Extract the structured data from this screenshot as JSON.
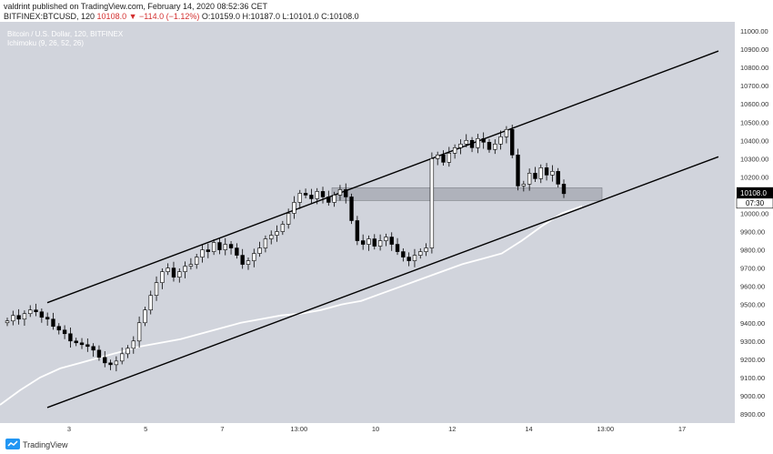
{
  "header": {
    "published": "valdrint published on TradingView.com, February 14, 2020 08:52:36 CET",
    "symbol": "BITFINEX:BTCUSD, 120",
    "last": "10108.0",
    "change": "▼ −114.0 (−1.12%)",
    "open": "O:10159.0",
    "high": "H:10187.0",
    "low": "L:10101.0",
    "close": "C:10108.0"
  },
  "legend": {
    "title": "Bitcoin / U.S. Dollar, 120, BITFINEX",
    "indicator": "Ichimoku (9, 26, 52, 26)"
  },
  "footer": {
    "brand": "TradingView"
  },
  "colors": {
    "background": "#d1d4dc",
    "candle_up": "#ffffff",
    "candle_down": "#000000",
    "cloud_line": "#ffffff",
    "zone": "#a3a7b0",
    "price_tag": "#000000"
  },
  "chart_data": {
    "type": "candlestick",
    "ylim": [
      8850,
      11050
    ],
    "y_ticks": [
      8900,
      9000,
      9100,
      9200,
      9300,
      9400,
      9500,
      9600,
      9700,
      9800,
      9900,
      10000,
      10100,
      10200,
      10300,
      10400,
      10500,
      10600,
      10700,
      10800,
      10900,
      11000
    ],
    "x_ticks": [
      "3",
      "5",
      "7",
      "13:00",
      "10",
      "12",
      "14",
      "13:00",
      "17"
    ],
    "last_price": "10108.0",
    "countdown": "07:30",
    "channel": {
      "upper": [
        [
          0,
          9510
        ],
        [
          1,
          10890
        ]
      ],
      "lower": [
        [
          0,
          8935
        ],
        [
          1,
          10310
        ]
      ]
    },
    "zone": {
      "low": 10070,
      "high": 10140
    },
    "baseline": [
      8950,
      9030,
      9100,
      9150,
      9180,
      9210,
      9240,
      9270,
      9290,
      9310,
      9340,
      9370,
      9400,
      9420,
      9440,
      9450,
      9470,
      9500,
      9520,
      9560,
      9600,
      9640,
      9680,
      9720,
      9750,
      9780,
      9850,
      9930,
      10000,
      10040
    ],
    "closes": [
      9410,
      9440,
      9420,
      9450,
      9470,
      9460,
      9430,
      9420,
      9380,
      9360,
      9340,
      9300,
      9290,
      9280,
      9270,
      9250,
      9210,
      9180,
      9170,
      9190,
      9230,
      9260,
      9300,
      9400,
      9470,
      9550,
      9620,
      9680,
      9700,
      9650,
      9680,
      9710,
      9720,
      9760,
      9800,
      9790,
      9840,
      9800,
      9830,
      9810,
      9770,
      9720,
      9740,
      9780,
      9810,
      9860,
      9880,
      9900,
      9940,
      10000,
      10060,
      10110,
      10100,
      10080,
      10120,
      10090,
      10060,
      10100,
      10130,
      10090,
      9960,
      9850,
      9830,
      9860,
      9820,
      9850,
      9870,
      9830,
      9790,
      9760,
      9740,
      9770,
      9790,
      9810,
      10300,
      10320,
      10280,
      10330,
      10360,
      10380,
      10400,
      10360,
      10410,
      10390,
      10350,
      10380,
      10420,
      10460,
      10320,
      10150,
      10160,
      10220,
      10190,
      10250,
      10210,
      10230,
      10160,
      10108
    ]
  }
}
